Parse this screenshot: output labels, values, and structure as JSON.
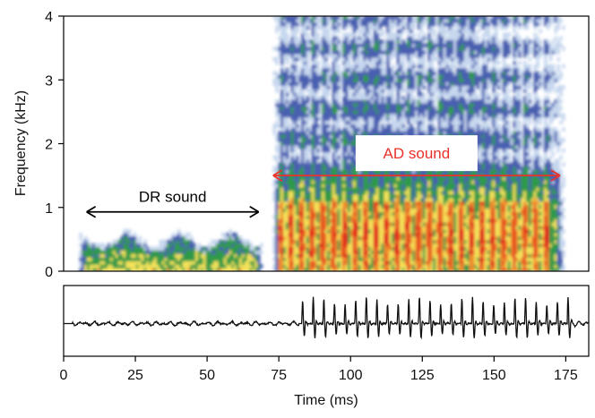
{
  "chart_data": [
    {
      "type": "heatmap",
      "subtype": "spectrogram",
      "xlabel": "",
      "ylabel": "Frequency (kHz)",
      "xlim": [
        0,
        183
      ],
      "ylim": [
        0,
        4
      ],
      "yticks": [
        0,
        1,
        2,
        3,
        4
      ],
      "color_scale": [
        "#ffffff",
        "#c6d7ee",
        "#4a5fb0",
        "#2f9a4a",
        "#f3e25a",
        "#f08a2a",
        "#e2261f"
      ],
      "regions": [
        {
          "name": "DR sound",
          "x_range": [
            5,
            69
          ],
          "freq_max_khz": 0.6,
          "peak_intensity": "medium"
        },
        {
          "name": "AD sound",
          "x_range": [
            73,
            175
          ],
          "freq_max_khz": 4,
          "peak_intensity": "high",
          "high_band_khz": [
            0.1,
            1.1
          ]
        }
      ],
      "annotations": [
        {
          "text": "DR sound",
          "arrow_x": [
            8,
            68
          ],
          "y": 0.93,
          "color": "#000000"
        },
        {
          "text": "AD sound",
          "arrow_x": [
            73,
            173
          ],
          "y": 1.5,
          "color": "#e8322a"
        }
      ]
    },
    {
      "type": "line",
      "subtype": "waveform",
      "xlabel": "Time (ms)",
      "ylabel": "",
      "xlim": [
        0,
        183
      ],
      "xticks": [
        0,
        25,
        50,
        75,
        100,
        125,
        150,
        175
      ],
      "pulses": {
        "start_ms": 83,
        "end_ms": 177,
        "period_ms": 3.7
      },
      "noise_region_ms": [
        0,
        82
      ]
    }
  ]
}
